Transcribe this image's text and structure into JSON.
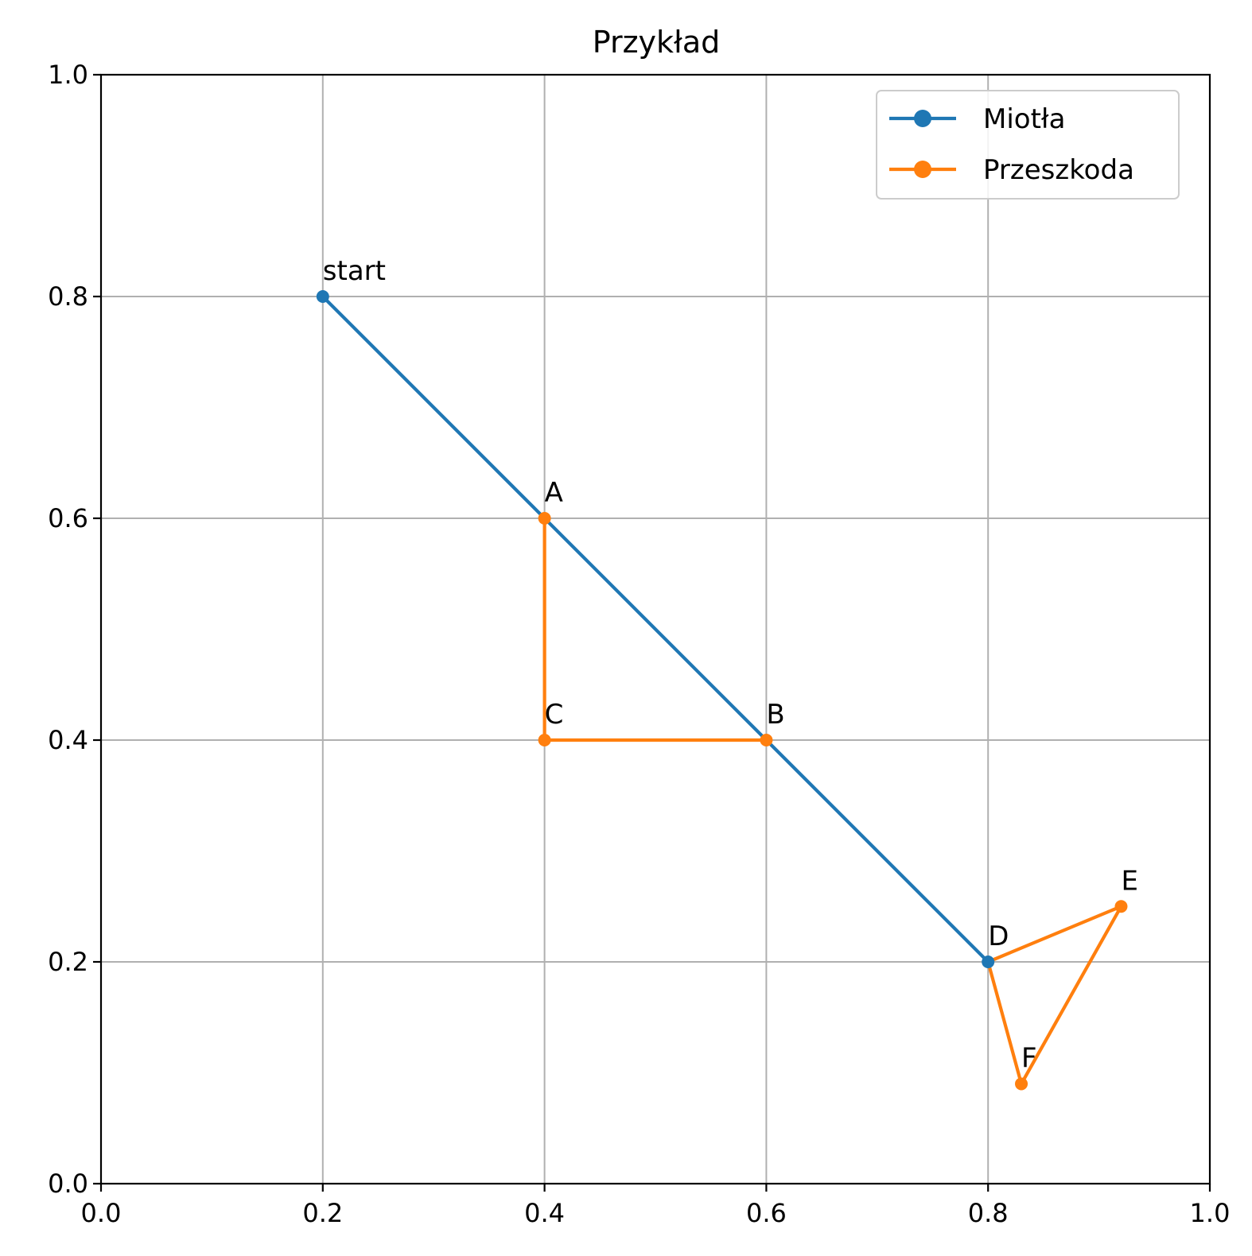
{
  "chart_data": {
    "type": "line",
    "title": "Przykład",
    "xlabel": "",
    "ylabel": "",
    "xlim": [
      0.0,
      1.0
    ],
    "ylim": [
      0.0,
      1.0
    ],
    "xticks": [
      "0.0",
      "0.2",
      "0.4",
      "0.6",
      "0.8",
      "1.0"
    ],
    "yticks": [
      "0.0",
      "0.2",
      "0.4",
      "0.6",
      "0.8",
      "1.0"
    ],
    "grid": true,
    "legend_position": "top-right",
    "series": [
      {
        "name": "Miotła",
        "color": "#1f77b4",
        "points": [
          {
            "x": 0.2,
            "y": 0.8
          },
          {
            "x": 0.8,
            "y": 0.2
          }
        ]
      },
      {
        "name": "Przeszkoda",
        "color": "#ff7f0e",
        "paths": [
          [
            {
              "x": 0.4,
              "y": 0.6
            },
            {
              "x": 0.4,
              "y": 0.4
            },
            {
              "x": 0.6,
              "y": 0.4
            }
          ],
          [
            {
              "x": 0.8,
              "y": 0.2
            },
            {
              "x": 0.92,
              "y": 0.25
            },
            {
              "x": 0.83,
              "y": 0.09
            },
            {
              "x": 0.8,
              "y": 0.2
            }
          ]
        ],
        "points": [
          {
            "x": 0.4,
            "y": 0.6
          },
          {
            "x": 0.4,
            "y": 0.4
          },
          {
            "x": 0.6,
            "y": 0.4
          },
          {
            "x": 0.92,
            "y": 0.25
          },
          {
            "x": 0.83,
            "y": 0.09
          }
        ]
      }
    ],
    "annotations": [
      {
        "text": "start",
        "x": 0.2,
        "y": 0.8
      },
      {
        "text": "A",
        "x": 0.4,
        "y": 0.6
      },
      {
        "text": "B",
        "x": 0.6,
        "y": 0.4
      },
      {
        "text": "C",
        "x": 0.4,
        "y": 0.4
      },
      {
        "text": "D",
        "x": 0.8,
        "y": 0.2
      },
      {
        "text": "E",
        "x": 0.92,
        "y": 0.25
      },
      {
        "text": "F",
        "x": 0.83,
        "y": 0.09
      }
    ]
  }
}
